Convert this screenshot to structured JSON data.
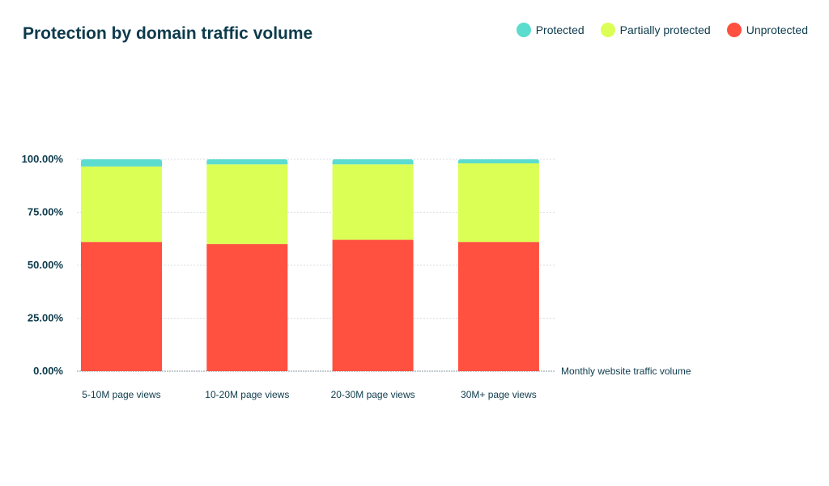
{
  "chart_data": {
    "type": "bar",
    "stacked": true,
    "title": "Protection by domain traffic volume",
    "xlabel": "Monthly website traffic volume",
    "ylabel": "",
    "ylim": [
      0,
      100
    ],
    "yticks": [
      "0.00%",
      "25.00%",
      "50.00%",
      "75.00%",
      "100.00%"
    ],
    "grid": true,
    "legend_position": "top-right",
    "categories": [
      "5-10M page views",
      "10-20M page views",
      "20-30M page views",
      "30M+ page views"
    ],
    "series": [
      {
        "name": "Unprotected",
        "color": "#ff5040",
        "values": [
          61.0,
          60.0,
          62.0,
          61.0
        ]
      },
      {
        "name": "Partially protected",
        "color": "#dbff55",
        "values": [
          35.6,
          37.6,
          35.6,
          37.1
        ]
      },
      {
        "name": "Protected",
        "color": "#5bdccf",
        "values": [
          3.4,
          2.4,
          2.4,
          1.9
        ]
      }
    ],
    "legend_order": [
      "Protected",
      "Partially protected",
      "Unprotected"
    ]
  }
}
